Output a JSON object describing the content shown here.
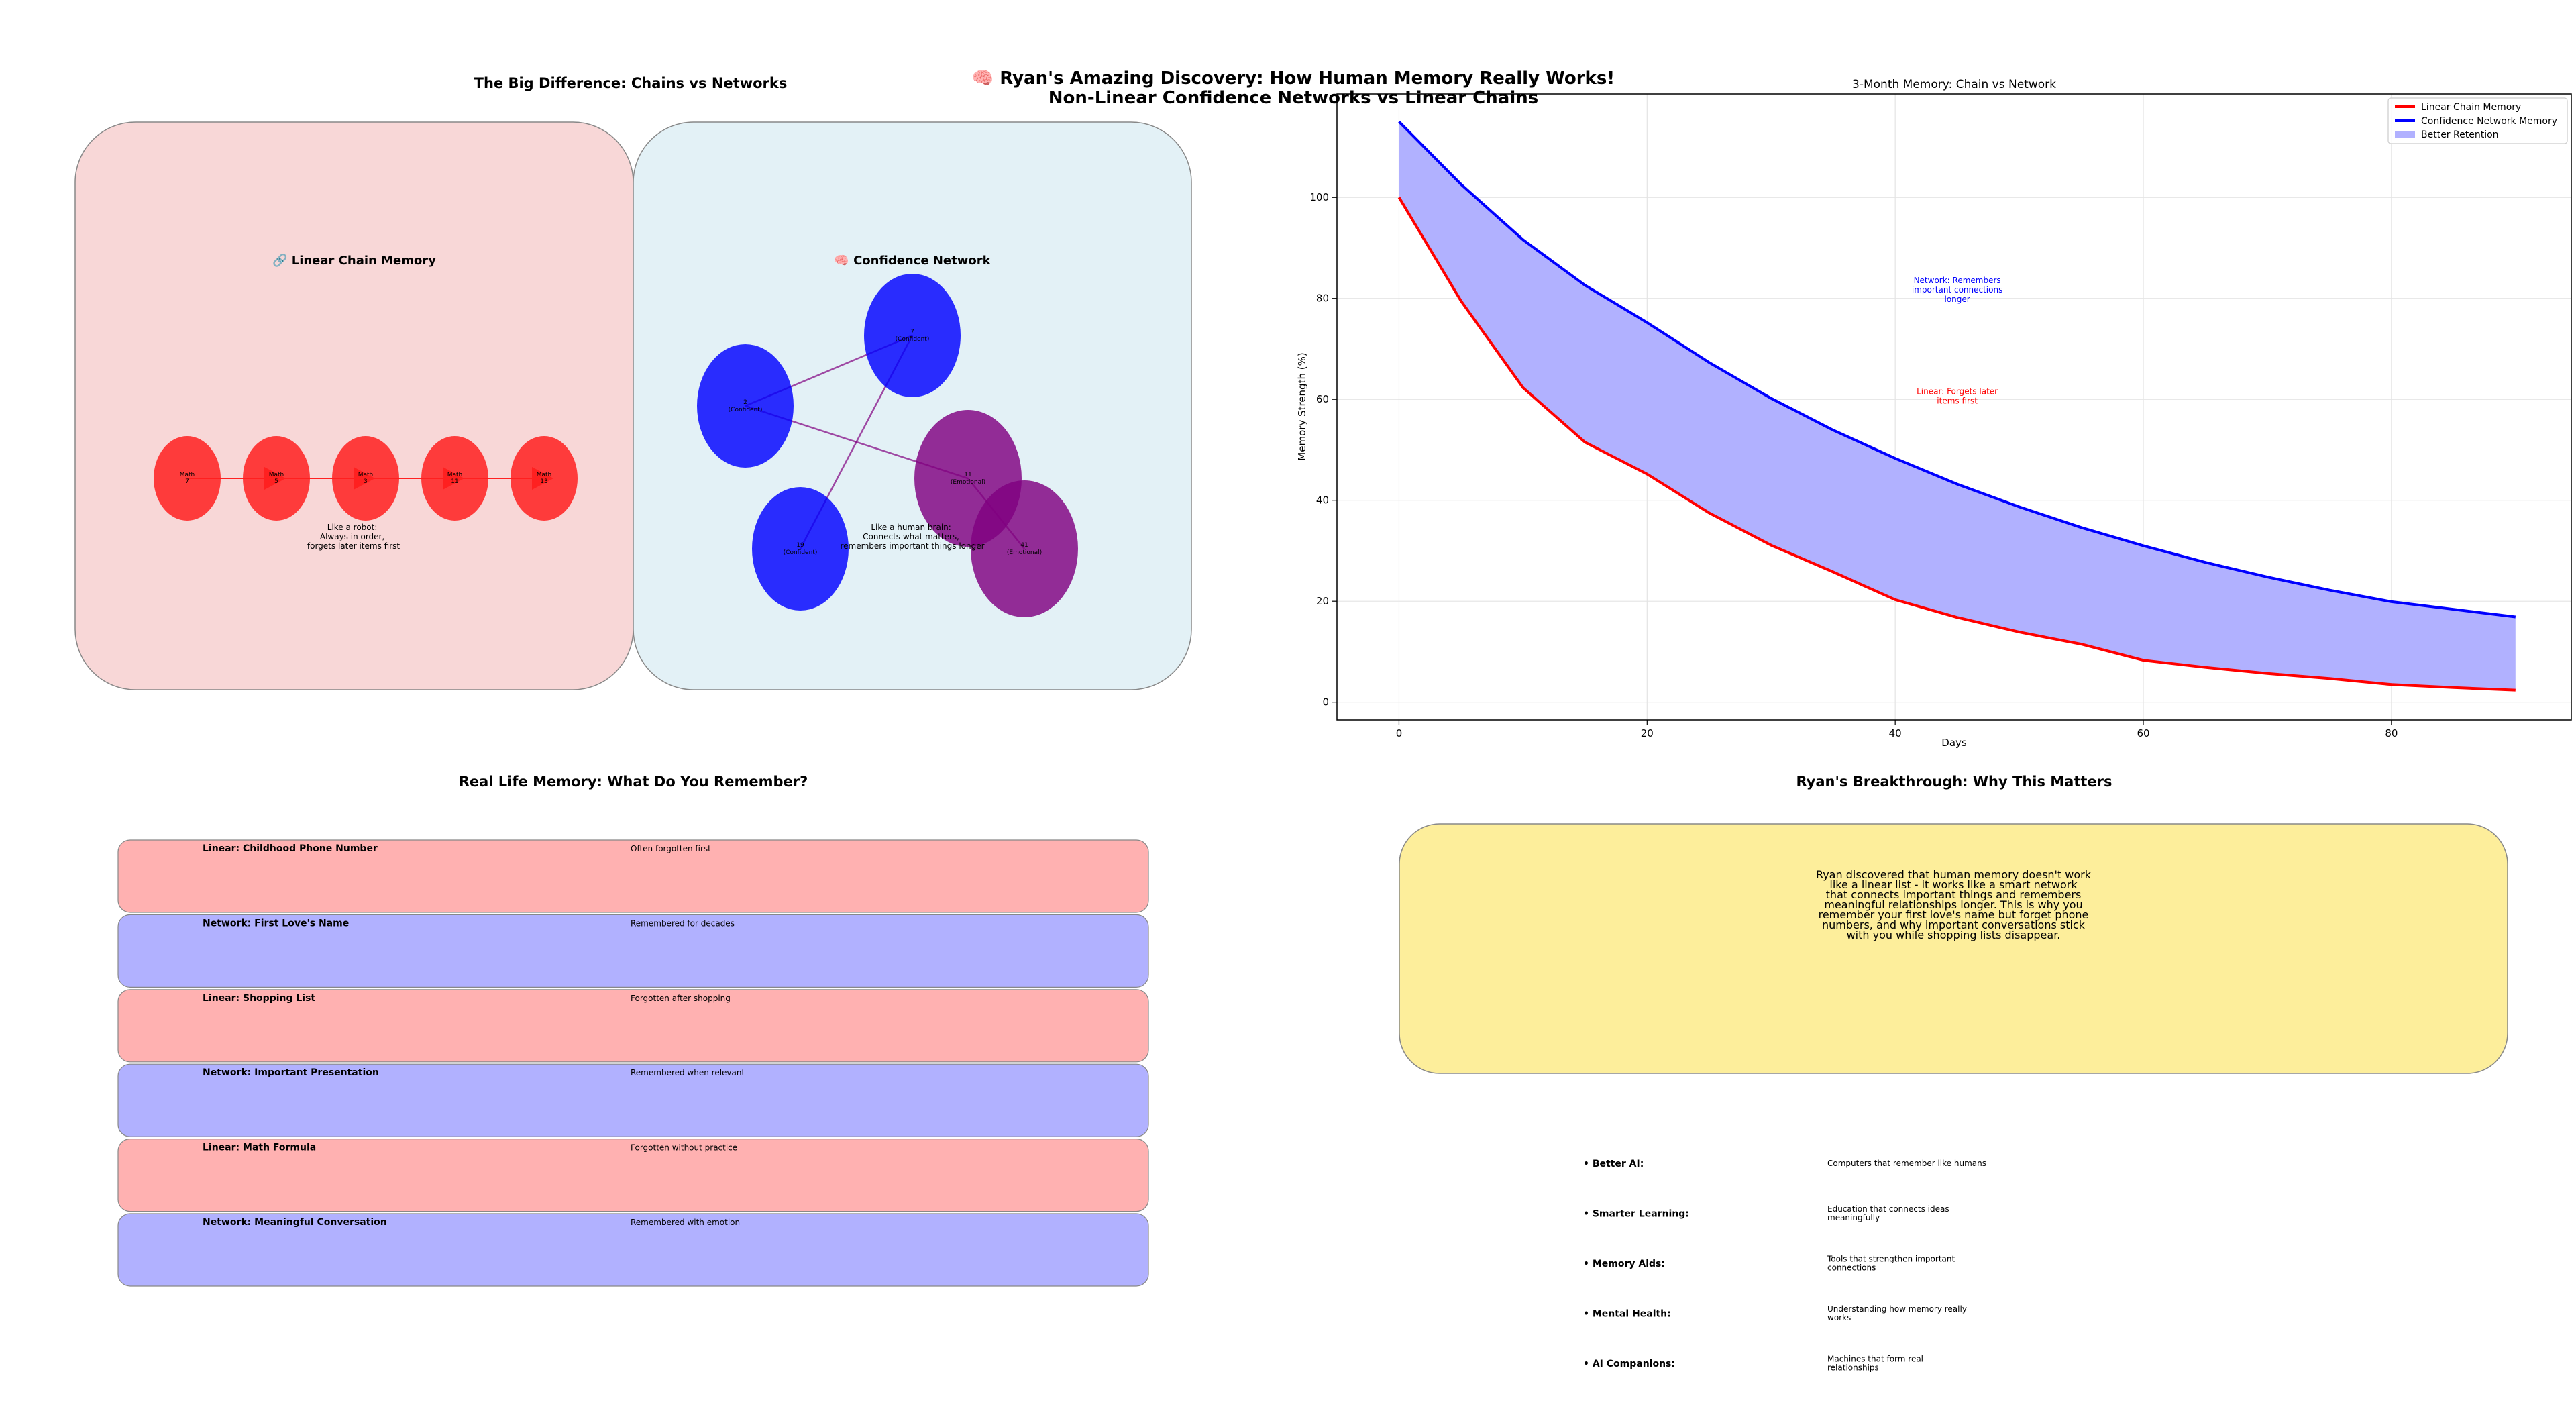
{
  "figure": {
    "title_line1": "🧠 Ryan's Amazing Discovery: How Human Memory Really Works!",
    "title_line2": "Non-Linear Confidence Networks vs Linear Chains"
  },
  "diagram_panel": {
    "title": "The Big Difference: Chains vs Networks",
    "chain_box": {
      "heading": "🔗 Linear Chain Memory",
      "nodes": [
        {
          "line1": "Math",
          "line2": "7"
        },
        {
          "line1": "Math",
          "line2": "5"
        },
        {
          "line1": "Math",
          "line2": "3"
        },
        {
          "line1": "Math",
          "line2": "11"
        },
        {
          "line1": "Math",
          "line2": "13"
        }
      ],
      "caption": [
        "Like a robot:",
        "Always in order,",
        "forgets later items first"
      ],
      "node_color": "#ff2020",
      "box_color": "#f8d7d7"
    },
    "network_box": {
      "heading": "🧠 Confidence Network",
      "nodes": [
        {
          "id": "n0",
          "line1": "2",
          "line2": "(Confident)",
          "kind": "confident"
        },
        {
          "id": "n1",
          "line1": "7",
          "line2": "(Confident)",
          "kind": "confident"
        },
        {
          "id": "n2",
          "line1": "11",
          "line2": "(Emotional)",
          "kind": "emotional"
        },
        {
          "id": "n3",
          "line1": "19",
          "line2": "(Confident)",
          "kind": "confident"
        },
        {
          "id": "n4",
          "line1": "41",
          "line2": "(Emotional)",
          "kind": "emotional"
        }
      ],
      "edges": [
        [
          "n0",
          "n1"
        ],
        [
          "n0",
          "n2"
        ],
        [
          "n1",
          "n3"
        ],
        [
          "n2",
          "n4"
        ]
      ],
      "caption": [
        "Like a human brain:",
        "Connects what matters,",
        "remembers important things longer"
      ],
      "confident_color": "#0000ff",
      "emotional_color": "#800080",
      "edge_color": "#800080",
      "box_color": "#e3f1f6"
    }
  },
  "chart_data": {
    "type": "line",
    "title": "3-Month Memory: Chain vs Network",
    "xlabel": "Days",
    "ylabel": "Memory Strength (%)",
    "xlim": [
      -5,
      94.5
    ],
    "ylim": [
      -3.5,
      120.5
    ],
    "xticks": [
      0,
      20,
      40,
      60,
      80
    ],
    "yticks": [
      0,
      20,
      40,
      60,
      80,
      100
    ],
    "grid": true,
    "legend_position": "top-right",
    "x": [
      0,
      5,
      10,
      15,
      20,
      25,
      30,
      35,
      40,
      45,
      50,
      55,
      60,
      65,
      70,
      75,
      80,
      85,
      90
    ],
    "series": [
      {
        "name": "Linear Chain Memory",
        "color": "#ff0000",
        "values": [
          100,
          79.5,
          62.3,
          51.5,
          45.2,
          37.5,
          31.1,
          25.8,
          20.3,
          16.8,
          13.9,
          11.5,
          8.3,
          6.9,
          5.7,
          4.7,
          3.5,
          2.9,
          2.4
        ]
      },
      {
        "name": "Confidence Network Memory",
        "color": "#0000ff",
        "values": [
          115,
          102.6,
          91.6,
          82.6,
          75.2,
          67.3,
          60.2,
          53.9,
          48.3,
          43.2,
          38.7,
          34.6,
          31.0,
          27.7,
          24.8,
          22.2,
          19.9,
          18.4,
          16.9
        ]
      }
    ],
    "fill": {
      "name": "Better Retention",
      "color": "#b1b1ff"
    },
    "annotations": [
      {
        "text": [
          "Network: Remembers",
          "important connections",
          "longer"
        ],
        "color": "#0000ff",
        "x": 45,
        "y": 83
      },
      {
        "text": [
          "Linear: Forgets later",
          "items first"
        ],
        "color": "#ff0000",
        "x": 45,
        "y": 61
      }
    ]
  },
  "real_life_panel": {
    "title": "Real Life Memory: What Do You Remember?",
    "rows": [
      {
        "label": "Linear: Childhood Phone Number",
        "outcome": "Often forgotten first",
        "kind": "linear"
      },
      {
        "label": "Network: First Love's Name",
        "outcome": "Remembered for decades",
        "kind": "network"
      },
      {
        "label": "Linear: Shopping List",
        "outcome": "Forgotten after shopping",
        "kind": "linear"
      },
      {
        "label": "Network: Important Presentation",
        "outcome": "Remembered when relevant",
        "kind": "network"
      },
      {
        "label": "Linear: Math Formula",
        "outcome": "Forgotten without practice",
        "kind": "linear"
      },
      {
        "label": "Network: Meaningful Conversation",
        "outcome": "Remembered with emotion",
        "kind": "network"
      }
    ],
    "linear_color": "#ffb1b1",
    "network_color": "#b1b1ff"
  },
  "breakthrough_panel": {
    "title": "Ryan's Breakthrough: Why This Matters",
    "summary": [
      "Ryan discovered that human memory doesn't work",
      "like a linear list - it works like a smart network",
      "that connects important things and remembers",
      "meaningful relationships longer. This is why you",
      "remember your first love's name but forget phone",
      "numbers, and why important conversations stick",
      "with you while shopping lists disappear."
    ],
    "summary_color": "#fdee9b",
    "benefits": [
      {
        "label": "• Better AI:",
        "desc": [
          "Computers that remember like humans"
        ]
      },
      {
        "label": "• Smarter Learning:",
        "desc": [
          "Education that connects ideas",
          "meaningfully"
        ]
      },
      {
        "label": "• Memory Aids:",
        "desc": [
          "Tools that strengthen important",
          "connections"
        ]
      },
      {
        "label": "• Mental Health:",
        "desc": [
          "Understanding how memory really",
          "works"
        ]
      },
      {
        "label": "• AI Companions:",
        "desc": [
          "Machines that form real",
          "relationships"
        ]
      }
    ]
  }
}
